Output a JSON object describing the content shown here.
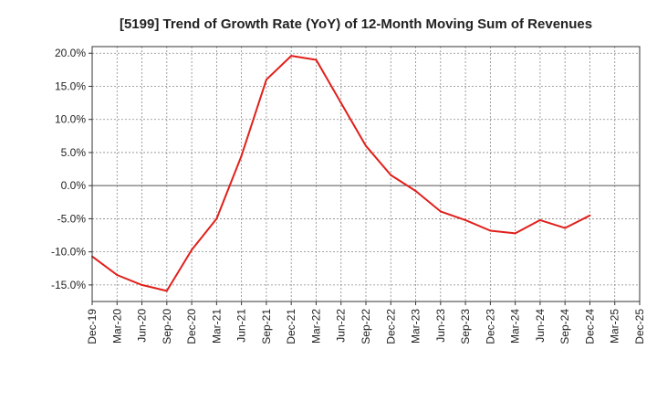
{
  "chart_data": {
    "type": "line",
    "title": "[5199]  Trend of Growth Rate (YoY) of 12-Month Moving Sum of Revenues",
    "xlabel": "",
    "ylabel": "",
    "x_ticks": [
      "Dec-19",
      "Mar-20",
      "Jun-20",
      "Sep-20",
      "Dec-20",
      "Mar-21",
      "Jun-21",
      "Sep-21",
      "Dec-21",
      "Mar-22",
      "Jun-22",
      "Sep-22",
      "Dec-22",
      "Mar-23",
      "Jun-23",
      "Sep-23",
      "Dec-23",
      "Mar-24",
      "Jun-24",
      "Sep-24",
      "Dec-24",
      "Mar-25",
      "Dec-25"
    ],
    "y_ticks": [
      20,
      15,
      10,
      5,
      0,
      -5,
      -10,
      -15
    ],
    "y_tick_labels": [
      "20.0%",
      "15.0%",
      "10.0%",
      "5.0%",
      "0.0%",
      "-5.0%",
      "-10.0%",
      "-15.0%"
    ],
    "ylim": [
      -17.5,
      21.0
    ],
    "grid": true,
    "line_color": "#e0201b",
    "series": [
      {
        "values": [
          -10.7,
          -13.5,
          -15.0,
          -15.9,
          -9.7,
          -5.0,
          4.5,
          16.0,
          19.6,
          19.0,
          12.5,
          6.0,
          1.6,
          -0.8,
          -3.9,
          -5.2,
          -6.8,
          -7.2,
          -5.2,
          -6.4,
          -4.5
        ]
      }
    ]
  }
}
